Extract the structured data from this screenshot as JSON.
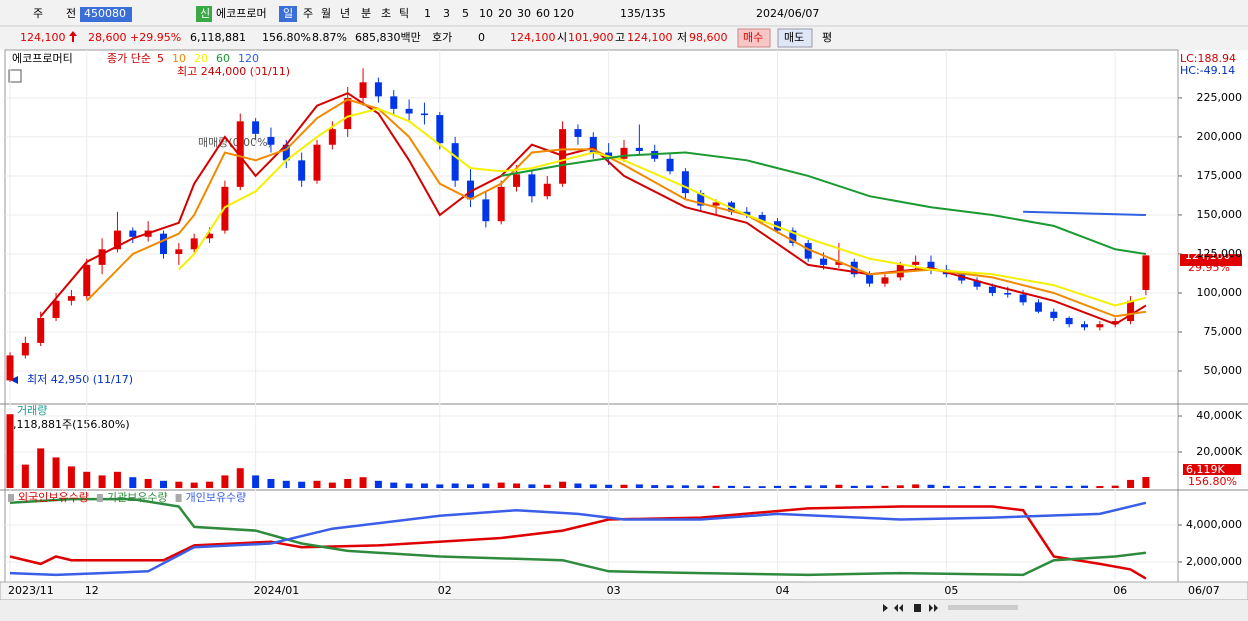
{
  "toolbar": {
    "row1": [
      "주",
      "전",
      "450080",
      "신",
      "에코프로머",
      "일",
      "주",
      "월",
      "년",
      "분",
      "초",
      "틱",
      "1",
      "3",
      "5",
      "10",
      "20",
      "30",
      "60",
      "120",
      "135/135",
      "2024/06/07"
    ],
    "row2": [
      "124,100",
      "28,600",
      "+29.95%",
      "6,118,881",
      "156.80%",
      "8.87%",
      "685,830백만",
      "호가",
      "0",
      "124,100",
      "시",
      "101,900",
      "고",
      "124,100",
      "저",
      "98,600",
      "매수",
      "매도",
      "평"
    ]
  },
  "chart_data": [
    {
      "type": "candlestick",
      "name": "에코프로머티",
      "indicator": "종가 단순",
      "annotations": {
        "high": "최고 244,000 (01/11)",
        "low": "최저 42,950 (11/17)",
        "lc": "LC:188.94",
        "hc": "HC:-49.14",
        "price": "124,100",
        "change": "29.95%",
        "ghost": "매매량(0.00%)"
      },
      "categories": [
        "2023/11",
        null,
        null,
        null,
        null,
        "12",
        null,
        null,
        null,
        null,
        null,
        null,
        null,
        null,
        null,
        null,
        "2024/01",
        null,
        null,
        null,
        null,
        null,
        null,
        null,
        null,
        null,
        null,
        null,
        "02",
        null,
        null,
        null,
        null,
        null,
        null,
        null,
        null,
        null,
        null,
        "03",
        null,
        null,
        null,
        null,
        null,
        null,
        null,
        null,
        null,
        null,
        "04",
        null,
        null,
        null,
        null,
        null,
        null,
        null,
        null,
        null,
        null,
        "05",
        null,
        null,
        null,
        null,
        null,
        null,
        null,
        null,
        null,
        null,
        "06",
        null,
        null
      ],
      "last_date": "06/07",
      "up_color": "#e00000",
      "down_color": "#0036e8",
      "ohlc": [
        [
          44000,
          62000,
          42950,
          60000
        ],
        [
          60000,
          72000,
          58000,
          68000
        ],
        [
          68000,
          88000,
          66000,
          84000
        ],
        [
          84000,
          100000,
          82000,
          95000
        ],
        [
          95000,
          102000,
          92000,
          98000
        ],
        [
          98000,
          122000,
          96000,
          118000
        ],
        [
          118000,
          135000,
          112000,
          128000
        ],
        [
          128000,
          152000,
          126000,
          140000
        ],
        [
          140000,
          142000,
          132000,
          136000
        ],
        [
          136000,
          146000,
          133000,
          140000
        ],
        [
          138000,
          140000,
          122000,
          125000
        ],
        [
          125000,
          132000,
          118000,
          128000
        ],
        [
          128000,
          138000,
          126000,
          135000
        ],
        [
          135000,
          142000,
          132000,
          138000
        ],
        [
          140000,
          172000,
          138000,
          168000
        ],
        [
          168000,
          215000,
          166000,
          210000
        ],
        [
          210000,
          212000,
          198000,
          202000
        ],
        [
          200000,
          206000,
          190000,
          195000
        ],
        [
          195000,
          198000,
          180000,
          185000
        ],
        [
          185000,
          190000,
          168000,
          172000
        ],
        [
          172000,
          198000,
          170000,
          195000
        ],
        [
          195000,
          210000,
          192000,
          205000
        ],
        [
          205000,
          232000,
          200000,
          225000
        ],
        [
          225000,
          244000,
          220000,
          235000
        ],
        [
          235000,
          238000,
          222000,
          226000
        ],
        [
          226000,
          230000,
          214000,
          218000
        ],
        [
          218000,
          224000,
          210000,
          215000
        ],
        [
          215000,
          222000,
          208000,
          214000
        ],
        [
          214000,
          216000,
          192000,
          196000
        ],
        [
          196000,
          200000,
          168000,
          172000
        ],
        [
          172000,
          180000,
          155000,
          160000
        ],
        [
          160000,
          165000,
          142000,
          146000
        ],
        [
          146000,
          172000,
          144000,
          168000
        ],
        [
          168000,
          182000,
          165000,
          176000
        ],
        [
          176000,
          178000,
          158000,
          162000
        ],
        [
          162000,
          175000,
          160000,
          170000
        ],
        [
          170000,
          210000,
          168000,
          205000
        ],
        [
          205000,
          208000,
          195000,
          200000
        ],
        [
          200000,
          203000,
          186000,
          190000
        ],
        [
          190000,
          196000,
          182000,
          186000
        ],
        [
          186000,
          198000,
          184000,
          193000
        ],
        [
          193000,
          208000,
          188000,
          191000
        ],
        [
          191000,
          195000,
          184000,
          186000
        ],
        [
          186000,
          190000,
          176000,
          178000
        ],
        [
          178000,
          180000,
          160000,
          164000
        ],
        [
          164000,
          166000,
          152000,
          156000
        ],
        [
          156000,
          160000,
          150000,
          158000
        ],
        [
          158000,
          159000,
          150000,
          152000
        ],
        [
          152000,
          155000,
          148000,
          150000
        ],
        [
          150000,
          152000,
          144000,
          146000
        ],
        [
          146000,
          148000,
          138000,
          140000
        ],
        [
          140000,
          142000,
          130000,
          132000
        ],
        [
          132000,
          134000,
          120000,
          122000
        ],
        [
          122000,
          126000,
          115000,
          118000
        ],
        [
          118000,
          132000,
          116000,
          120000
        ],
        [
          120000,
          122000,
          110000,
          112000
        ],
        [
          112000,
          114000,
          104000,
          106000
        ],
        [
          106000,
          112000,
          104000,
          110000
        ],
        [
          110000,
          120000,
          108000,
          118000
        ],
        [
          118000,
          124000,
          114000,
          120000
        ],
        [
          120000,
          124000,
          112000,
          115000
        ],
        [
          115000,
          118000,
          110000,
          112000
        ],
        [
          112000,
          114000,
          106000,
          108000
        ],
        [
          108000,
          110000,
          102000,
          104000
        ],
        [
          104000,
          106000,
          98000,
          100000
        ],
        [
          100000,
          104000,
          97000,
          99000
        ],
        [
          99000,
          102000,
          92000,
          94000
        ],
        [
          94000,
          96000,
          87000,
          88000
        ],
        [
          88000,
          90000,
          82000,
          84000
        ],
        [
          84000,
          85000,
          78000,
          80000
        ],
        [
          80000,
          82000,
          76000,
          78000
        ],
        [
          78000,
          82000,
          76000,
          80000
        ],
        [
          80000,
          84000,
          78000,
          82000
        ],
        [
          82000,
          98000,
          80000,
          95000
        ],
        [
          101900,
          124100,
          98600,
          124100
        ]
      ],
      "series": [
        {
          "name": "5",
          "color": "#d40000",
          "x": [
            2,
            5,
            8,
            11,
            12,
            14,
            16,
            18,
            20,
            22,
            24,
            26,
            28,
            30,
            32,
            34,
            36,
            38,
            40,
            44,
            48,
            52,
            56,
            60,
            64,
            68,
            72,
            74
          ],
          "values": [
            85000,
            120000,
            135000,
            145000,
            170000,
            200000,
            175000,
            195000,
            220000,
            228000,
            215000,
            185000,
            150000,
            165000,
            175000,
            195000,
            188000,
            193000,
            175000,
            155000,
            145000,
            118000,
            112000,
            116000,
            105000,
            95000,
            80000,
            92000
          ]
        },
        {
          "name": "10",
          "color": "#f08a00",
          "x": [
            5,
            8,
            11,
            12,
            14,
            16,
            18,
            20,
            22,
            24,
            26,
            28,
            30,
            32,
            34,
            36,
            38,
            40,
            44,
            48,
            52,
            56,
            60,
            64,
            68,
            72,
            74
          ],
          "values": [
            95000,
            125000,
            138000,
            150000,
            190000,
            185000,
            192000,
            212000,
            224000,
            218000,
            200000,
            170000,
            160000,
            170000,
            190000,
            192000,
            192000,
            182000,
            160000,
            150000,
            128000,
            112000,
            115000,
            110000,
            100000,
            85000,
            88000
          ]
        },
        {
          "name": "20",
          "color": "#f4f000",
          "x": [
            11,
            12,
            14,
            16,
            18,
            20,
            22,
            24,
            26,
            28,
            30,
            32,
            34,
            36,
            38,
            40,
            44,
            48,
            52,
            56,
            60,
            64,
            68,
            72,
            74
          ],
          "values": [
            115000,
            125000,
            155000,
            165000,
            185000,
            200000,
            213000,
            218000,
            210000,
            195000,
            180000,
            178000,
            180000,
            185000,
            190000,
            185000,
            168000,
            150000,
            135000,
            122000,
            115000,
            112000,
            105000,
            92000,
            97000
          ]
        },
        {
          "name": "60",
          "color": "#1a9a30",
          "x": [
            32,
            36,
            40,
            44,
            48,
            52,
            56,
            60,
            64,
            68,
            72,
            74
          ],
          "values": [
            175000,
            182000,
            188000,
            190000,
            185000,
            175000,
            162000,
            155000,
            150000,
            143000,
            128000,
            125000
          ]
        },
        {
          "name": "120",
          "color": "#3060e0",
          "x": [
            66,
            74
          ],
          "values": [
            152000,
            150000
          ]
        }
      ],
      "ylim": [
        29500,
        252500
      ],
      "yticks": [
        {
          "value": 50000,
          "label": "50,000"
        },
        {
          "value": 75000,
          "label": "75,000"
        },
        {
          "value": 100000,
          "label": "100,000"
        },
        {
          "value": 125000,
          "label": "125,000"
        },
        {
          "value": 150000,
          "label": "150,000"
        },
        {
          "value": 175000,
          "label": "175,000"
        },
        {
          "value": 200000,
          "label": "200,000"
        },
        {
          "value": 225000,
          "label": "225,000"
        }
      ],
      "grid": true
    },
    {
      "type": "bar",
      "title": "거래량",
      "subtitle": "6,118,881주(156.80%)",
      "last_label": "6,119K",
      "last_change": "156.80%",
      "values": [
        41000,
        13000,
        22000,
        17000,
        12000,
        9000,
        7000,
        9000,
        6000,
        5000,
        4000,
        3500,
        3000,
        3500,
        7000,
        11000,
        7000,
        5000,
        4000,
        3500,
        4000,
        3000,
        5000,
        6000,
        4000,
        3000,
        2500,
        2500,
        2000,
        2500,
        2000,
        2500,
        3000,
        2500,
        2000,
        1800,
        3500,
        2500,
        2000,
        1800,
        1800,
        2000,
        1600,
        1500,
        1500,
        1400,
        1200,
        1200,
        1000,
        1000,
        1200,
        1200,
        1400,
        1500,
        1800,
        1200,
        1400,
        1200,
        1500,
        2000,
        1800,
        1200,
        1000,
        1200,
        1100,
        1000,
        1200,
        1300,
        1000,
        1200,
        1300,
        1100,
        1300,
        4500,
        6119
      ],
      "ylim": [
        0,
        43900
      ],
      "yticks": [
        {
          "value": 20000,
          "label": "20,000K"
        },
        {
          "value": 40000,
          "label": "40,000K"
        }
      ],
      "grid": true
    },
    {
      "type": "line",
      "series": [
        {
          "name": "외국인보유수량",
          "color": "#e00000",
          "x": [
            0,
            2,
            3,
            4,
            10,
            12,
            17,
            19,
            24,
            32,
            36,
            39,
            45,
            52,
            58,
            64,
            66,
            68,
            71,
            73,
            74
          ],
          "values": [
            2300000,
            1900000,
            2300000,
            2100000,
            2100000,
            2900000,
            3100000,
            2800000,
            2900000,
            3300000,
            3700000,
            4300000,
            4400000,
            4900000,
            5000000,
            5000000,
            4800000,
            2300000,
            1900000,
            1600000,
            1100000
          ]
        },
        {
          "name": "기관보유수량",
          "color": "#2e8b3e",
          "x": [
            0,
            4,
            8,
            11,
            12,
            16,
            19,
            22,
            28,
            36,
            39,
            45,
            52,
            58,
            66,
            68,
            72,
            74
          ],
          "values": [
            5200000,
            5400000,
            5400000,
            5000000,
            3900000,
            3700000,
            3000000,
            2600000,
            2300000,
            2100000,
            1500000,
            1400000,
            1300000,
            1400000,
            1300000,
            2100000,
            2300000,
            2500000
          ]
        },
        {
          "name": "개인보유수량",
          "color": "#3a5ee8",
          "x": [
            0,
            3,
            9,
            12,
            17,
            21,
            28,
            33,
            37,
            40,
            45,
            50,
            58,
            64,
            71,
            74
          ],
          "values": [
            1400000,
            1300000,
            1500000,
            2800000,
            3000000,
            3800000,
            4500000,
            4800000,
            4600000,
            4300000,
            4300000,
            4600000,
            4300000,
            4400000,
            4600000,
            5200000
          ]
        }
      ],
      "ylim": [
        1027000,
        5622000
      ],
      "yticks": [
        {
          "value": 2000000,
          "label": "2,000,000"
        },
        {
          "value": 4000000,
          "label": "4,000,000"
        }
      ],
      "grid": true
    }
  ]
}
